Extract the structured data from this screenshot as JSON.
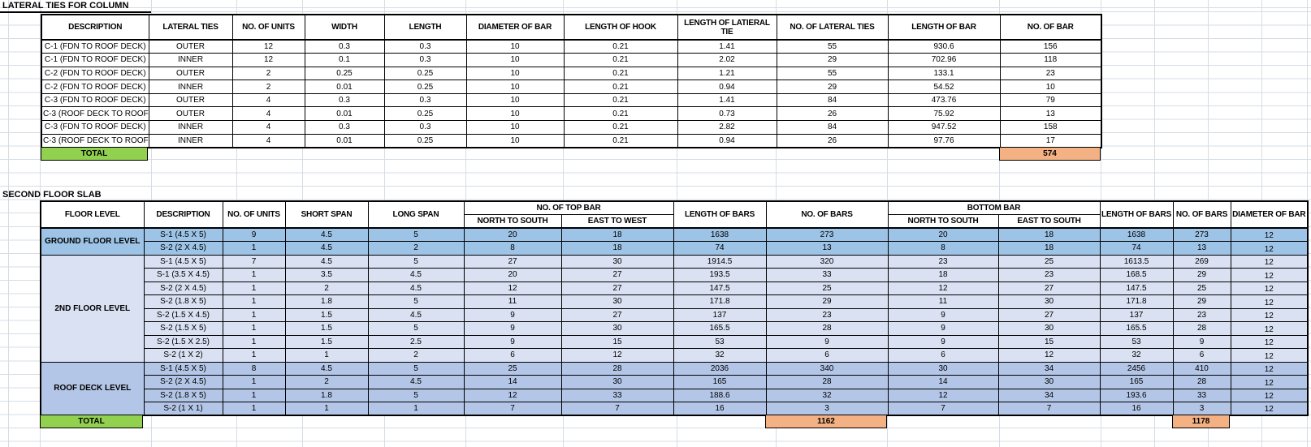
{
  "colors": {
    "green": "#92D050",
    "orange": "#F4B183",
    "blue_ground": "#9DC3E6",
    "blue_second": "#D9E1F2",
    "blue_roof": "#B4C6E7"
  },
  "table1": {
    "title": "LATERAL TIES FOR COLUMN",
    "columns": [
      "DESCRIPTION",
      "LATERAL TIES",
      "NO. OF UNITS",
      "WIDTH",
      "LENGTH",
      "DIAMETER OF BAR",
      "LENGTH OF HOOK",
      "LENGTH OF LATIERAL TIE",
      "NO. OF LATERAL TIES",
      "LENGTH OF BAR",
      "NO. OF BAR"
    ],
    "rows": [
      [
        "C-1 (FDN TO ROOF DECK)",
        "OUTER",
        "12",
        "0.3",
        "0.3",
        "10",
        "0.21",
        "1.41",
        "55",
        "930.6",
        "156"
      ],
      [
        "C-1 (FDN TO ROOF DECK)",
        "INNER",
        "12",
        "0.1",
        "0.3",
        "10",
        "0.21",
        "2.02",
        "29",
        "702.96",
        "118"
      ],
      [
        "C-2 (FDN TO ROOF DECK)",
        "OUTER",
        "2",
        "0.25",
        "0.25",
        "10",
        "0.21",
        "1.21",
        "55",
        "133.1",
        "23"
      ],
      [
        "C-2 (FDN TO ROOF DECK)",
        "INNER",
        "2",
        "0.01",
        "0.25",
        "10",
        "0.21",
        "0.94",
        "29",
        "54.52",
        "10"
      ],
      [
        "C-3 (FDN TO ROOF DECK)",
        "OUTER",
        "4",
        "0.3",
        "0.3",
        "10",
        "0.21",
        "1.41",
        "84",
        "473.76",
        "79"
      ],
      [
        "C-3 (ROOF DECK TO ROOF )",
        "OUTER",
        "4",
        "0.01",
        "0.25",
        "10",
        "0.21",
        "0.73",
        "26",
        "75.92",
        "13"
      ],
      [
        "C-3 (FDN TO ROOF DECK)",
        "INNER",
        "4",
        "0.3",
        "0.3",
        "10",
        "0.21",
        "2.82",
        "84",
        "947.52",
        "158"
      ],
      [
        "C-3 (ROOF DECK TO ROOF )",
        "INNER",
        "4",
        "0.01",
        "0.25",
        "10",
        "0.21",
        "0.94",
        "26",
        "97.76",
        "17"
      ]
    ],
    "totals": {
      "label": "TOTAL",
      "no_of_bar": "574"
    }
  },
  "table2": {
    "title": "SECOND FLOOR SLAB",
    "header": {
      "floor_level": "FLOOR LEVEL",
      "description": "DESCRIPTION",
      "no_of_units": "NO. OF UNITS",
      "short_span": "SHORT SPAN",
      "long_span": "LONG SPAN",
      "top_bar_group": "NO. OF TOP BAR",
      "top_ns": "NORTH TO SOUTH",
      "top_ew": "EAST TO WEST",
      "length_of_bars_top": "LENGTH OF BARS",
      "no_of_bars_top": "NO. OF BARS",
      "bottom_bar_group": "BOTTOM BAR",
      "bottom_ns": "NORTH TO SOUTH",
      "bottom_es": "EAST TO SOUTH",
      "length_of_bars_bottom": "LENGTH OF BARS",
      "no_of_bars_bottom": "NO. OF BARS",
      "diameter_of_bar": "DIAMETER OF BAR"
    },
    "groups": [
      {
        "label": "GROUND FLOOR LEVEL",
        "color_key": "blue_ground",
        "rows": [
          [
            "S-1 (4.5 X 5)",
            "9",
            "4.5",
            "5",
            "20",
            "18",
            "1638",
            "273",
            "20",
            "18",
            "1638",
            "273",
            "12"
          ],
          [
            "S-2 (2 X 4.5)",
            "1",
            "4.5",
            "2",
            "8",
            "18",
            "74",
            "13",
            "8",
            "18",
            "74",
            "13",
            "12"
          ]
        ]
      },
      {
        "label": "2ND FLOOR LEVEL",
        "color_key": "blue_second",
        "rows": [
          [
            "S-1 (4.5 X 5)",
            "7",
            "4.5",
            "5",
            "27",
            "30",
            "1914.5",
            "320",
            "23",
            "25",
            "1613.5",
            "269",
            "12"
          ],
          [
            "S-1 (3.5 X 4.5)",
            "1",
            "3.5",
            "4.5",
            "20",
            "27",
            "193.5",
            "33",
            "18",
            "23",
            "168.5",
            "29",
            "12"
          ],
          [
            "S-2 (2 X 4.5)",
            "1",
            "2",
            "4.5",
            "12",
            "27",
            "147.5",
            "25",
            "12",
            "27",
            "147.5",
            "25",
            "12"
          ],
          [
            "S-2 (1.8 X 5)",
            "1",
            "1.8",
            "5",
            "11",
            "30",
            "171.8",
            "29",
            "11",
            "30",
            "171.8",
            "29",
            "12"
          ],
          [
            "S-2 (1.5 X 4.5)",
            "1",
            "1.5",
            "4.5",
            "9",
            "27",
            "137",
            "23",
            "9",
            "27",
            "137",
            "23",
            "12"
          ],
          [
            "S-2 (1.5 X 5)",
            "1",
            "1.5",
            "5",
            "9",
            "30",
            "165.5",
            "28",
            "9",
            "30",
            "165.5",
            "28",
            "12"
          ],
          [
            "S-2 (1.5 X 2.5)",
            "1",
            "1.5",
            "2.5",
            "9",
            "15",
            "53",
            "9",
            "9",
            "15",
            "53",
            "9",
            "12"
          ],
          [
            "S-2 (1 X 2)",
            "1",
            "1",
            "2",
            "6",
            "12",
            "32",
            "6",
            "6",
            "12",
            "32",
            "6",
            "12"
          ]
        ]
      },
      {
        "label": "ROOF DECK LEVEL",
        "color_key": "blue_roof",
        "rows": [
          [
            "S-1 (4.5 X 5)",
            "8",
            "4.5",
            "5",
            "25",
            "28",
            "2036",
            "340",
            "30",
            "34",
            "2456",
            "410",
            "12"
          ],
          [
            "S-2 (2 X 4.5)",
            "1",
            "2",
            "4.5",
            "14",
            "30",
            "165",
            "28",
            "14",
            "30",
            "165",
            "28",
            "12"
          ],
          [
            "S-2 (1.8 X 5)",
            "1",
            "1.8",
            "5",
            "12",
            "33",
            "188.6",
            "32",
            "12",
            "34",
            "193.6",
            "33",
            "12"
          ],
          [
            "S-2 (1 X 1)",
            "1",
            "1",
            "1",
            "7",
            "7",
            "16",
            "3",
            "7",
            "7",
            "16",
            "3",
            "12"
          ]
        ]
      }
    ],
    "totals": {
      "label": "TOTAL",
      "top_bars": "1162",
      "bottom_bars": "1178"
    }
  }
}
